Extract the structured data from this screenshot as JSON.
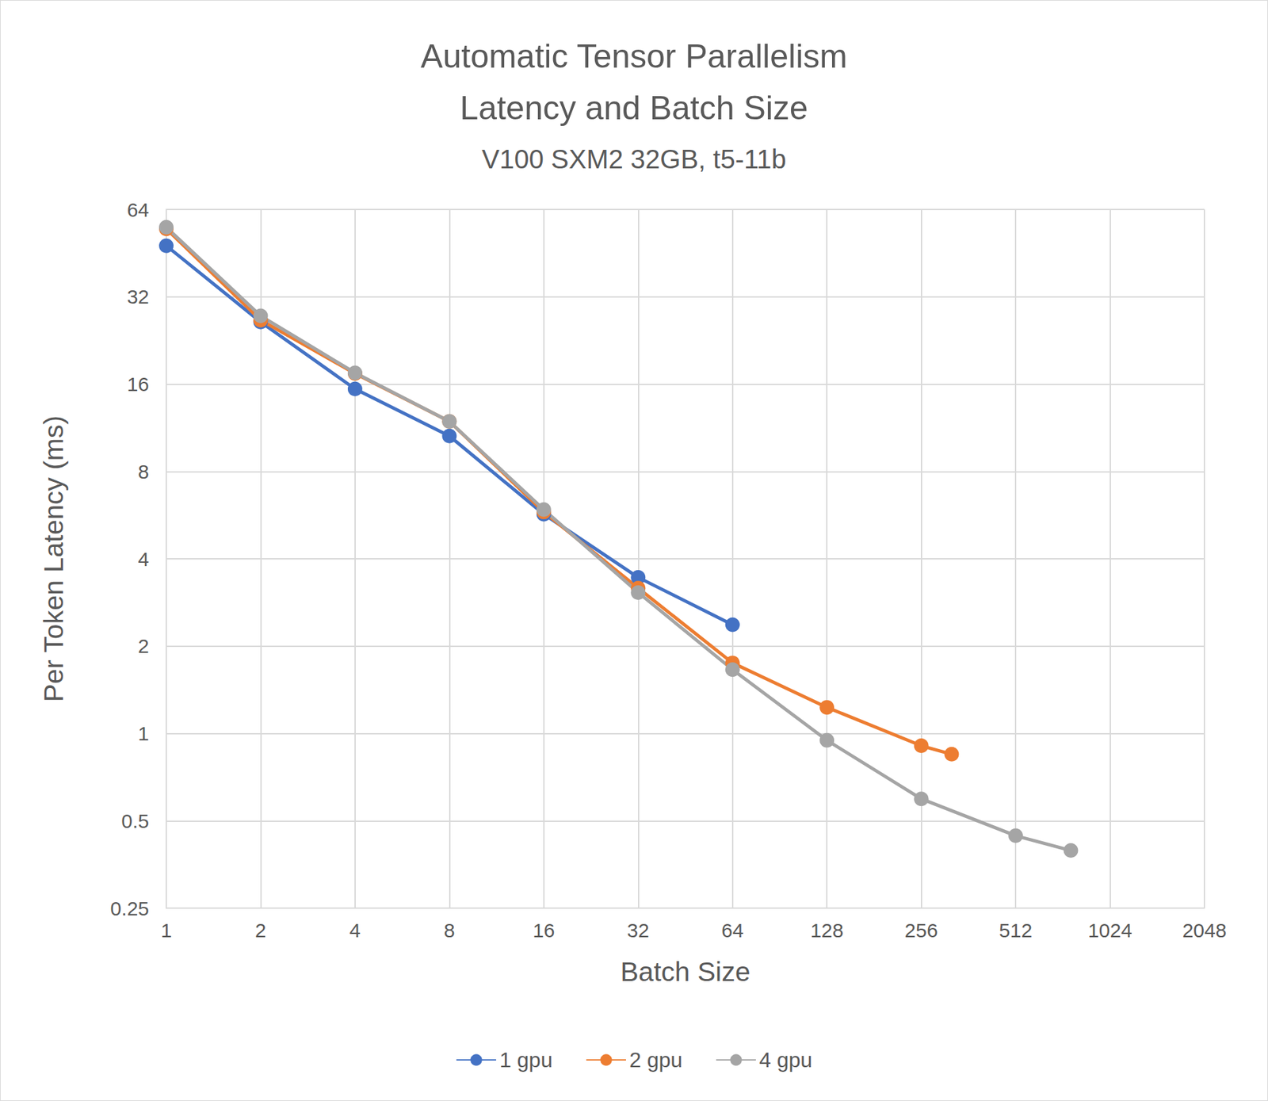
{
  "chart_data": {
    "type": "line",
    "title": "Automatic Tensor Parallelism\nLatency and Batch Size",
    "subtitle": "V100 SXM2 32GB, t5-11b",
    "x_label": "Batch Size",
    "y_label": "Per Token Latency (ms)",
    "log": true,
    "grid": true,
    "legend": "bottom",
    "xlim": [
      1,
      2048
    ],
    "xticks": [
      1,
      2,
      4,
      8,
      16,
      32,
      64,
      128,
      256,
      512,
      1024,
      2048
    ],
    "ylim": [
      0.25,
      64
    ],
    "yticks": [
      0.25,
      0.5,
      1,
      2,
      4,
      8,
      16,
      32,
      64
    ],
    "series": [
      {
        "name": "1 gpu",
        "color": "#4472c4",
        "marker": "circle",
        "x": [
          1,
          2,
          4,
          8,
          16,
          32,
          64
        ],
        "values": [
          48.0,
          26.2,
          15.4,
          10.6,
          5.7,
          3.45,
          2.37
        ]
      },
      {
        "name": "2 gpu",
        "color": "#ed7d31",
        "marker": "circle",
        "x": [
          1,
          2,
          4,
          8,
          16,
          32,
          64,
          128,
          256,
          320
        ],
        "values": [
          54.9,
          26.6,
          17.4,
          11.9,
          5.8,
          3.17,
          1.75,
          1.23,
          0.907,
          0.848
        ]
      },
      {
        "name": "4 gpu",
        "color": "#a5a5a5",
        "marker": "circle",
        "x": [
          1,
          2,
          4,
          8,
          16,
          32,
          64,
          128,
          256,
          512,
          768
        ],
        "values": [
          55.6,
          27.5,
          17.5,
          11.9,
          5.91,
          3.06,
          1.66,
          0.947,
          0.595,
          0.444,
          0.395
        ]
      }
    ]
  }
}
